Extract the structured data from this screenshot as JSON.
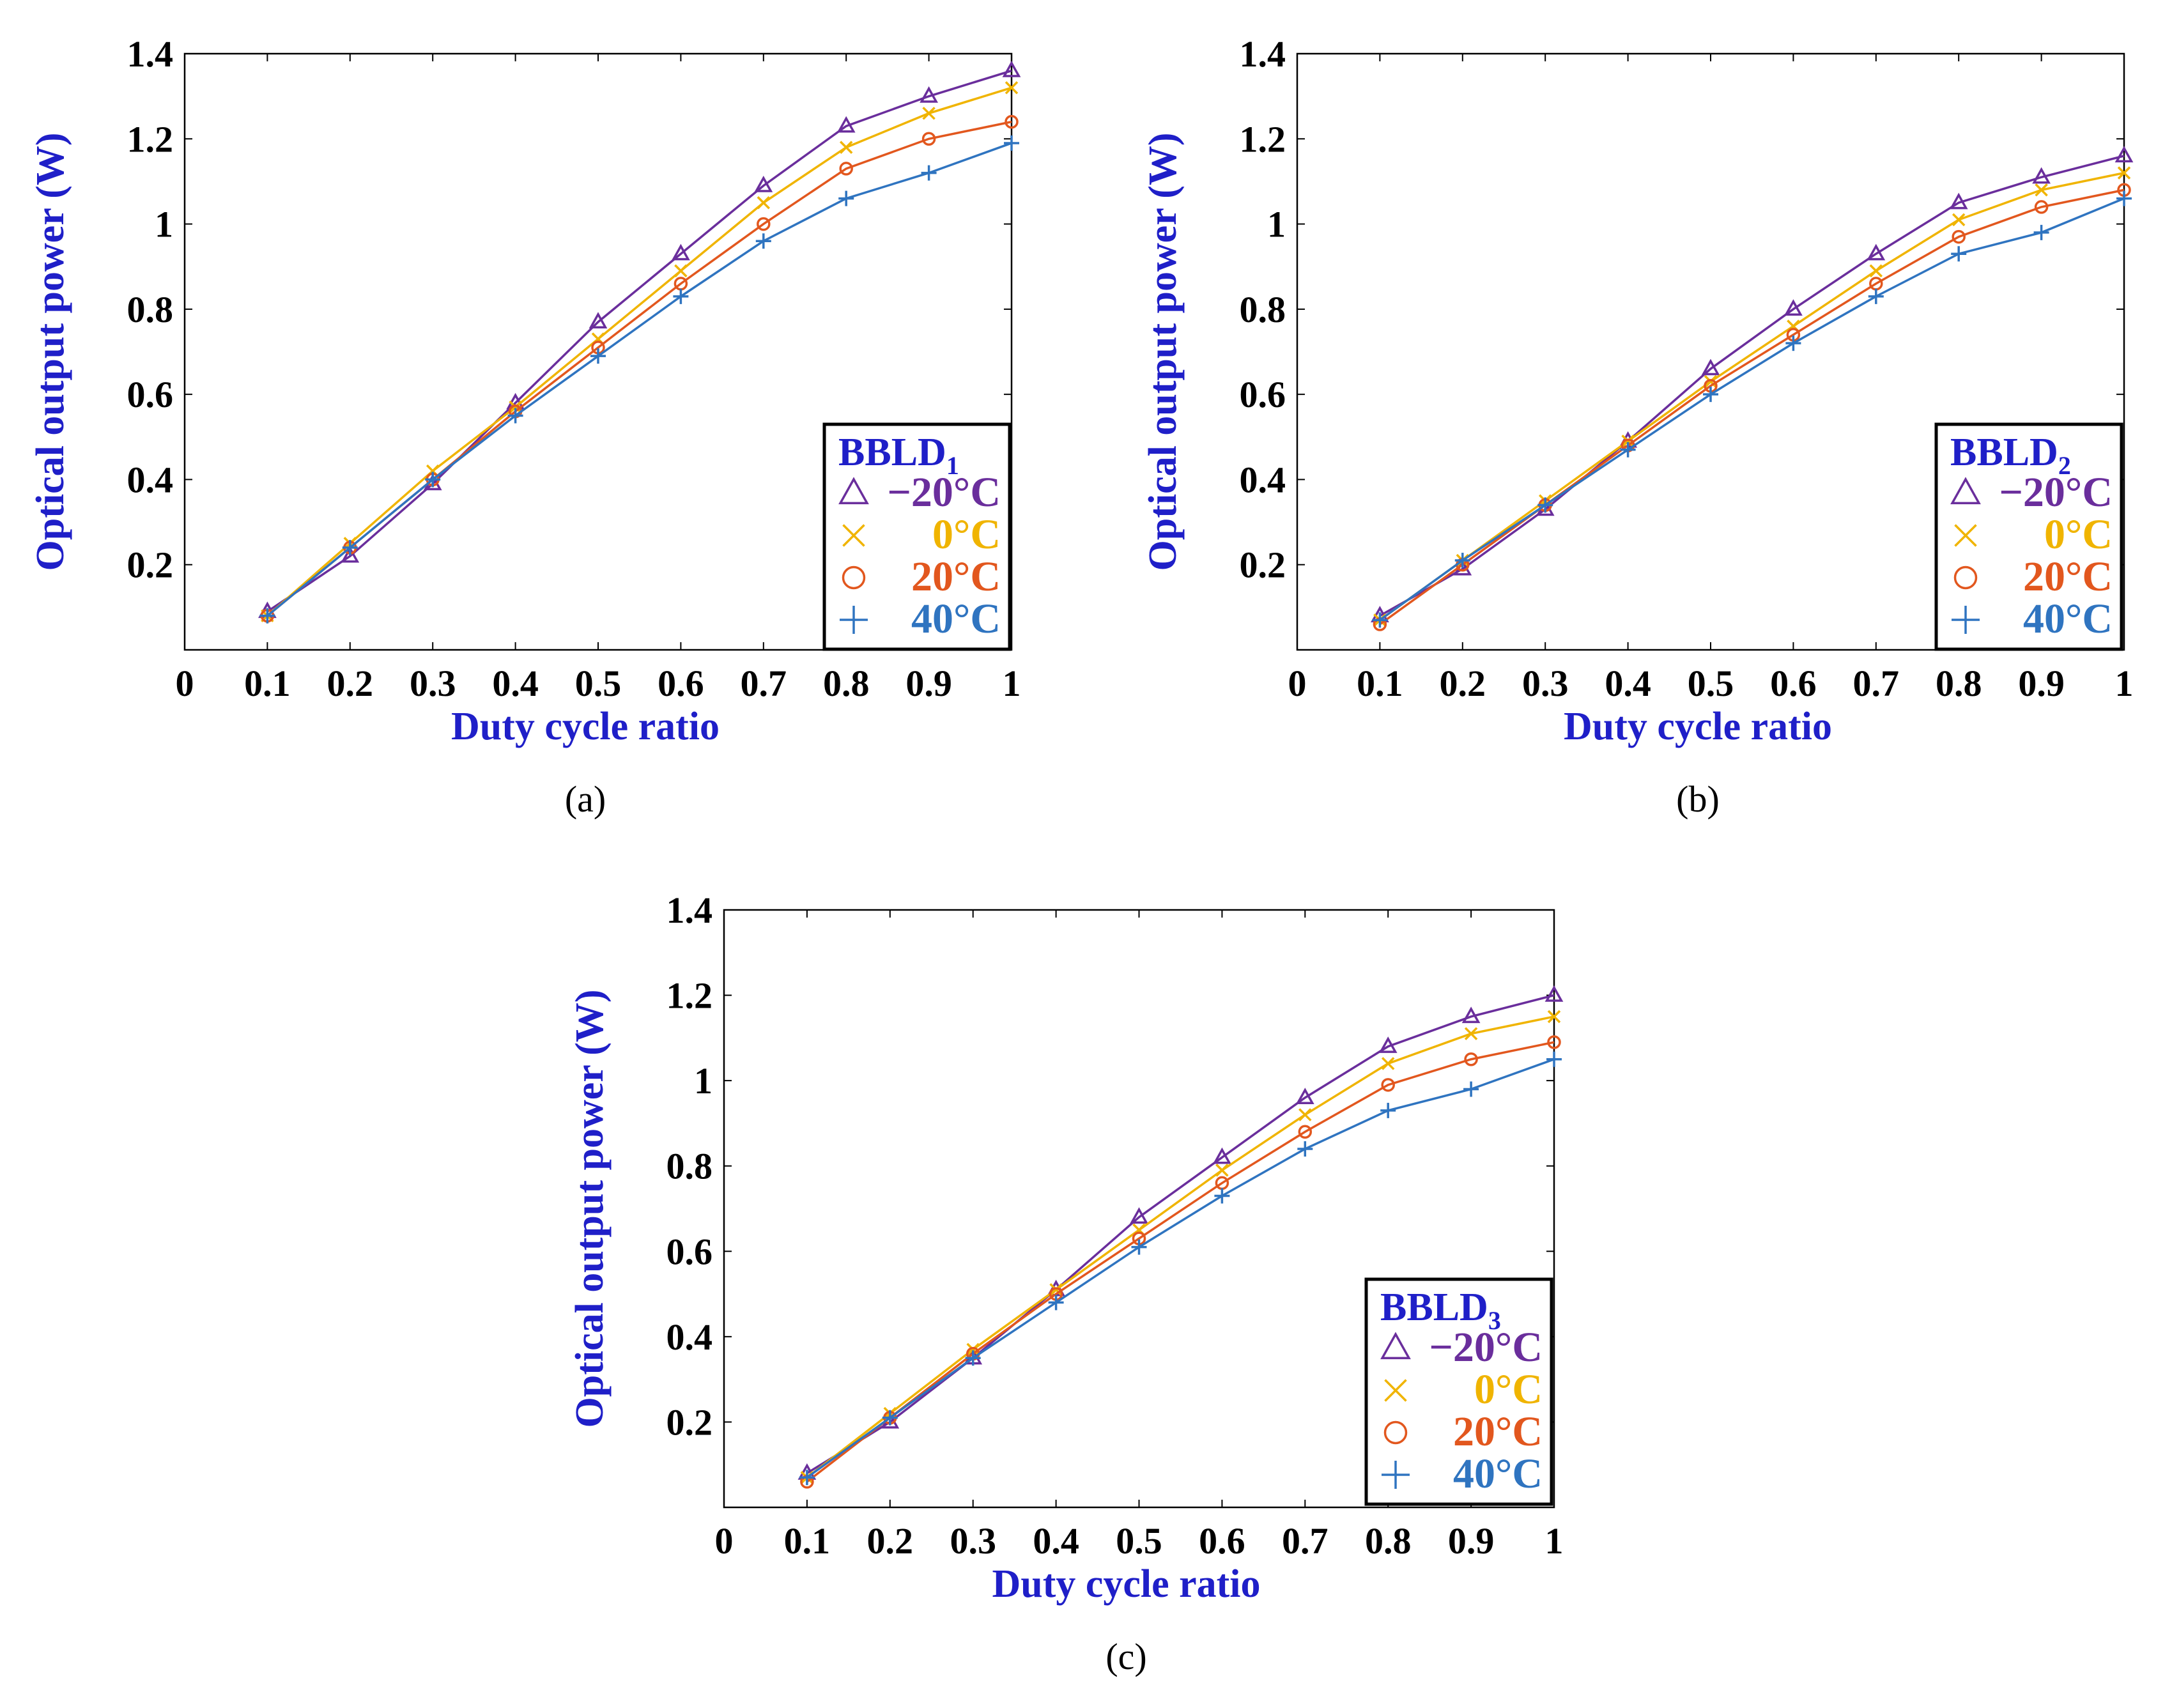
{
  "colors": {
    "axis_title": "#1f1fc8",
    "series": [
      "#6a2e9c",
      "#f0b400",
      "#e2571e",
      "#2f74c0"
    ]
  },
  "chart_data": [
    {
      "type": "line",
      "caption": "(a)",
      "legend_title": {
        "base": "BBLD",
        "sub": "1"
      },
      "xlabel": "Duty cycle ratio",
      "ylabel": "Optical output power (W)",
      "xlim": [
        0,
        1
      ],
      "ylim": [
        0,
        1.4
      ],
      "x_ticks": [
        "0",
        "0.1",
        "0.2",
        "0.3",
        "0.4",
        "0.5",
        "0.6",
        "0.7",
        "0.8",
        "0.9",
        "1"
      ],
      "y_ticks": [
        "0.2",
        "0.4",
        "0.6",
        "0.8",
        "1",
        "1.2",
        "1.4"
      ],
      "x": [
        0.1,
        0.2,
        0.3,
        0.4,
        0.5,
        0.6,
        0.7,
        0.8,
        0.9,
        1.0
      ],
      "series": [
        {
          "name": "−20°C",
          "marker": "triangle",
          "values": [
            0.09,
            0.22,
            0.39,
            0.58,
            0.77,
            0.93,
            1.09,
            1.23,
            1.3,
            1.36
          ]
        },
        {
          "name": "0°C",
          "marker": "x",
          "values": [
            0.08,
            0.25,
            0.42,
            0.57,
            0.73,
            0.89,
            1.05,
            1.18,
            1.26,
            1.32
          ]
        },
        {
          "name": "20°C",
          "marker": "circle",
          "values": [
            0.08,
            0.24,
            0.4,
            0.56,
            0.71,
            0.86,
            1.0,
            1.13,
            1.2,
            1.24
          ]
        },
        {
          "name": "40°C",
          "marker": "plus",
          "values": [
            0.08,
            0.24,
            0.4,
            0.55,
            0.69,
            0.83,
            0.96,
            1.06,
            1.12,
            1.19
          ]
        }
      ]
    },
    {
      "type": "line",
      "caption": "(b)",
      "legend_title": {
        "base": "BBLD",
        "sub": "2"
      },
      "xlabel": "Duty cycle ratio",
      "ylabel": "Optical output power (W)",
      "xlim": [
        0,
        1
      ],
      "ylim": [
        0,
        1.4
      ],
      "x_ticks": [
        "0",
        "0.1",
        "0.2",
        "0.3",
        "0.4",
        "0.5",
        "0.6",
        "0.7",
        "0.8",
        "0.9",
        "1"
      ],
      "y_ticks": [
        "0.2",
        "0.4",
        "0.6",
        "0.8",
        "1",
        "1.2",
        "1.4"
      ],
      "x": [
        0.1,
        0.2,
        0.3,
        0.4,
        0.5,
        0.6,
        0.7,
        0.8,
        0.9,
        1.0
      ],
      "series": [
        {
          "name": "−20°C",
          "marker": "triangle",
          "values": [
            0.08,
            0.19,
            0.33,
            0.49,
            0.66,
            0.8,
            0.93,
            1.05,
            1.11,
            1.16
          ]
        },
        {
          "name": "0°C",
          "marker": "x",
          "values": [
            0.07,
            0.21,
            0.35,
            0.49,
            0.63,
            0.76,
            0.89,
            1.01,
            1.08,
            1.12
          ]
        },
        {
          "name": "20°C",
          "marker": "circle",
          "values": [
            0.06,
            0.2,
            0.34,
            0.48,
            0.62,
            0.74,
            0.86,
            0.97,
            1.04,
            1.08
          ]
        },
        {
          "name": "40°C",
          "marker": "plus",
          "values": [
            0.07,
            0.21,
            0.34,
            0.47,
            0.6,
            0.72,
            0.83,
            0.93,
            0.98,
            1.06
          ]
        }
      ]
    },
    {
      "type": "line",
      "caption": "(c)",
      "legend_title": {
        "base": "BBLD",
        "sub": "3"
      },
      "xlabel": "Duty cycle ratio",
      "ylabel": "Optical output power (W)",
      "xlim": [
        0,
        1
      ],
      "ylim": [
        0,
        1.4
      ],
      "x_ticks": [
        "0",
        "0.1",
        "0.2",
        "0.3",
        "0.4",
        "0.5",
        "0.6",
        "0.7",
        "0.8",
        "0.9",
        "1"
      ],
      "y_ticks": [
        "0.2",
        "0.4",
        "0.6",
        "0.8",
        "1",
        "1.2",
        "1.4"
      ],
      "x": [
        0.1,
        0.2,
        0.3,
        0.4,
        0.5,
        0.6,
        0.7,
        0.8,
        0.9,
        1.0
      ],
      "series": [
        {
          "name": "−20°C",
          "marker": "triangle",
          "values": [
            0.08,
            0.2,
            0.35,
            0.51,
            0.68,
            0.82,
            0.96,
            1.08,
            1.15,
            1.2
          ]
        },
        {
          "name": "0°C",
          "marker": "x",
          "values": [
            0.07,
            0.22,
            0.37,
            0.51,
            0.65,
            0.79,
            0.92,
            1.04,
            1.11,
            1.15
          ]
        },
        {
          "name": "20°C",
          "marker": "circle",
          "values": [
            0.06,
            0.21,
            0.36,
            0.5,
            0.63,
            0.76,
            0.88,
            0.99,
            1.05,
            1.09
          ]
        },
        {
          "name": "40°C",
          "marker": "plus",
          "values": [
            0.07,
            0.21,
            0.35,
            0.48,
            0.61,
            0.73,
            0.84,
            0.93,
            0.98,
            1.05
          ]
        }
      ]
    }
  ]
}
